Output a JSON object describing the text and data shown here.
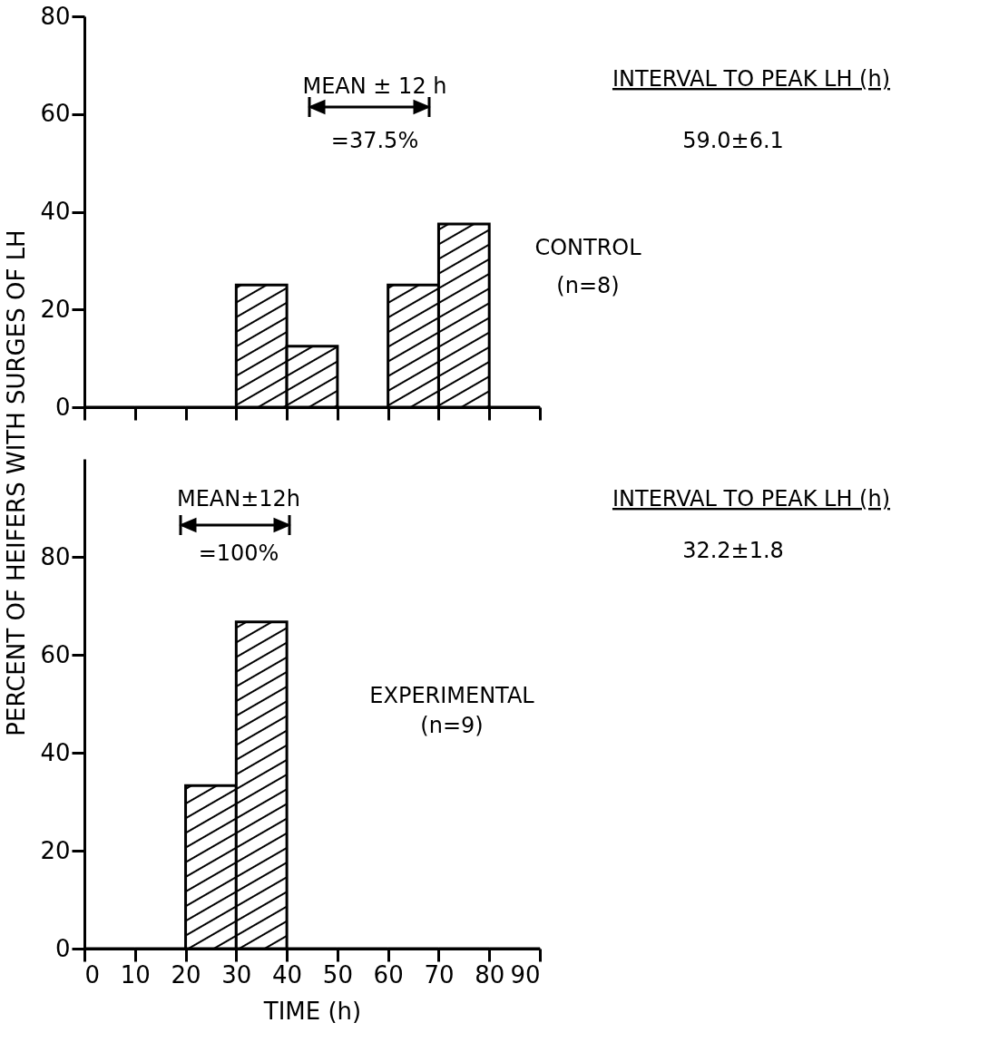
{
  "chart_data": [
    {
      "type": "histogram",
      "bins": [
        0,
        10,
        20,
        30,
        40,
        50,
        60,
        70,
        80,
        90
      ],
      "values": [
        0,
        0,
        0,
        25,
        12.5,
        0,
        25,
        37.5,
        0
      ],
      "color": "#000000",
      "xlim": [
        0,
        90
      ],
      "xticks": [
        0,
        10,
        20,
        30,
        40,
        50,
        60,
        70,
        80,
        90
      ],
      "ylim": [
        0,
        80
      ],
      "yticks": [
        0,
        20,
        40,
        60,
        80
      ],
      "ylabel": "PERCENT OF HEIFERS WITH SURGES OF LH",
      "tick_labels": "y",
      "annotations": [
        "MEAN ± 12 h",
        "=37.5%",
        "INTERVAL TO PEAK LH (h)",
        "59.0±6.1",
        "CONTROL",
        "(n=8)"
      ]
    },
    {
      "type": "histogram",
      "bins": [
        0,
        10,
        20,
        30,
        40,
        50,
        60,
        70,
        80,
        90
      ],
      "values": [
        0,
        0,
        33.3,
        66.7,
        0,
        0,
        0,
        0,
        0
      ],
      "color": "#000000",
      "xlim": [
        0,
        90
      ],
      "xticks": [
        0,
        10,
        20,
        30,
        40,
        50,
        60,
        70,
        80,
        90
      ],
      "ylim": [
        0,
        100
      ],
      "yticks": [
        0,
        20,
        40,
        60,
        80
      ],
      "xlabel": "TIME (h)",
      "annotations": [
        "MEAN±12h",
        "=100%",
        "INTERVAL TO PEAK LH (h)",
        "32.2±1.8",
        "EXPERIMENTAL",
        "(n=9)"
      ]
    }
  ]
}
